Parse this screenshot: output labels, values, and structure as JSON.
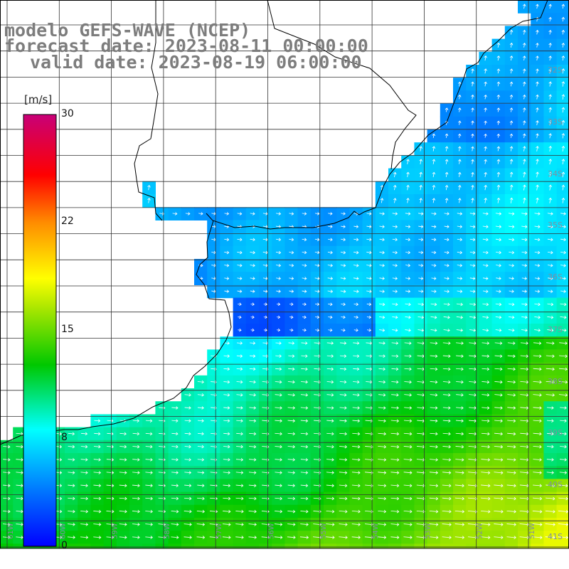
{
  "header": {
    "model": "modelo GEFS-WAVE (NCEP)",
    "forecast_date": "forecast date: 2023-08-11 00:00:00",
    "valid_date": "valid date: 2023-08-19 06:00:00"
  },
  "colorbar": {
    "units": "[m/s]",
    "ticks": [
      "30",
      "22",
      "15",
      "8",
      "0"
    ],
    "range": [
      0,
      30
    ]
  },
  "map": {
    "region": "Río de la Plata / Uruguay coast, South Atlantic",
    "lon_labels": [
      "61W",
      "60W",
      "59W",
      "58W",
      "57W",
      "56W",
      "55W",
      "54W",
      "53W",
      "52W",
      "51W"
    ],
    "lat_labels": [
      "32S",
      "33S",
      "34S",
      "35S",
      "36S",
      "37S",
      "38S",
      "39S",
      "40S",
      "41S"
    ],
    "colors": {
      "land": "#ffffff",
      "grid": "#333333",
      "coast": "#000000",
      "arrows": "#ffffff"
    }
  }
}
